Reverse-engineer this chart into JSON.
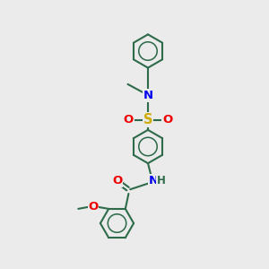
{
  "bg_color": "#ebebeb",
  "bond_color": "#2d6b4a",
  "bond_width": 1.5,
  "atom_colors": {
    "N": "#0000ee",
    "O": "#ee0000",
    "S": "#ccaa00",
    "C": "#2d6b4a",
    "H": "#2d6b4a"
  },
  "font_size": 8.5,
  "fig_size": [
    3.0,
    3.0
  ],
  "dpi": 100,
  "ring_r": 0.62
}
